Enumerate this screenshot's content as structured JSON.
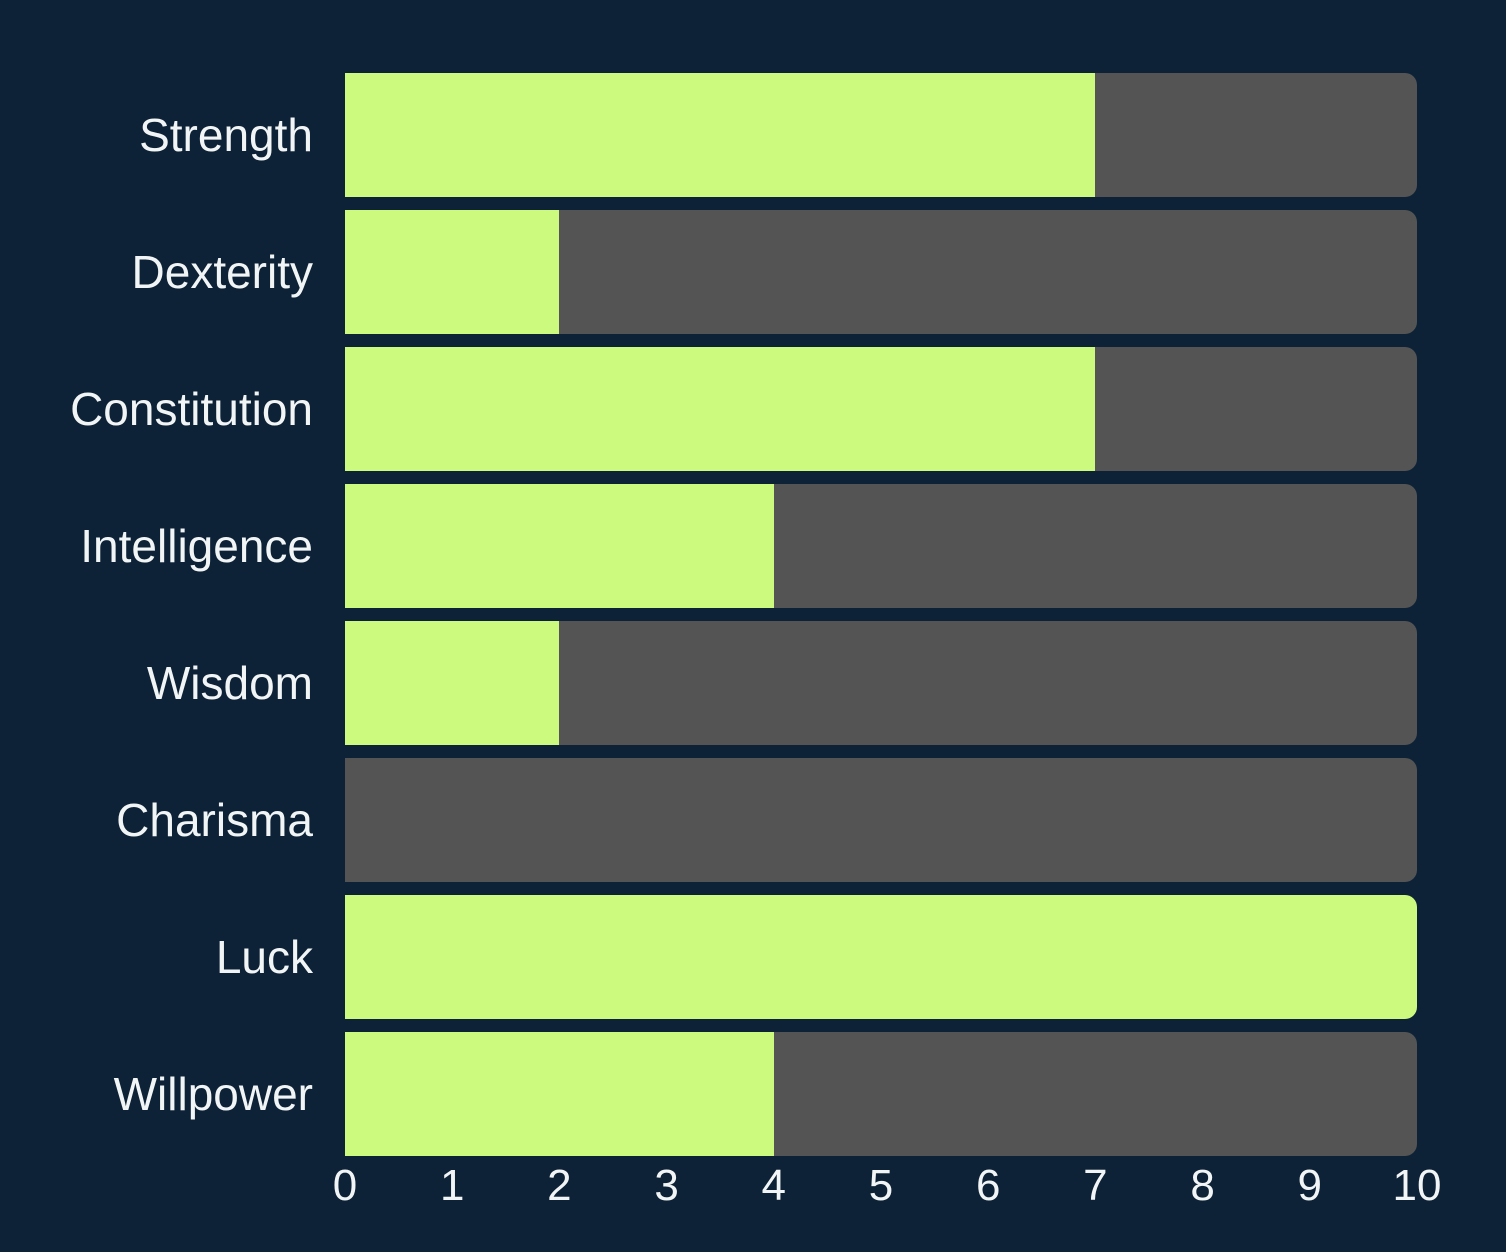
{
  "chart_data": {
    "type": "bar",
    "orientation": "horizontal",
    "title": "",
    "categories": [
      "Strength",
      "Dexterity",
      "Constitution",
      "Intelligence",
      "Wisdom",
      "Charisma",
      "Luck",
      "Willpower"
    ],
    "values": [
      7,
      2,
      7,
      4,
      2,
      0,
      10,
      4
    ],
    "xlabel": "",
    "ylabel": "",
    "xlim": [
      0,
      10
    ],
    "x_ticks": [
      0,
      1,
      2,
      3,
      4,
      5,
      6,
      7,
      8,
      9,
      10
    ],
    "grid": false,
    "legend": false,
    "track_full_range": true,
    "colors": {
      "bar": "#CCFA7F",
      "track": "#545454",
      "background": "#0D2237",
      "text": "#F2F5F5"
    }
  }
}
